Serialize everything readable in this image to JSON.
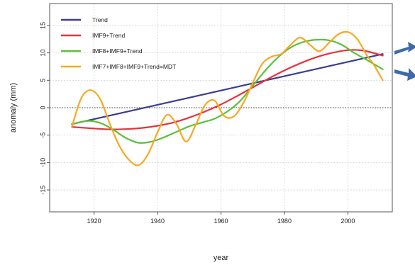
{
  "chart_data": {
    "type": "line",
    "title": "",
    "xlabel": "year",
    "ylabel": "anomaly (mm)",
    "xlim": [
      1906,
      2014
    ],
    "ylim": [
      -19,
      19
    ],
    "x_ticks": [
      1920,
      1940,
      1960,
      1980,
      2000
    ],
    "y_ticks": [
      -15,
      -10,
      -5,
      0,
      5,
      10,
      15
    ],
    "grid": true,
    "zero_line": true,
    "legend_position": "top-left",
    "series": [
      {
        "name": "Trend",
        "color": "#3b3f8f",
        "x": [
          1913,
          2011
        ],
        "y": [
          -3.0,
          9.8
        ]
      },
      {
        "name": "IMF9+Trend",
        "color": "#e8323c",
        "x": [
          1913,
          1920,
          1925,
          1930,
          1935,
          1940,
          1945,
          1950,
          1955,
          1960,
          1965,
          1970,
          1975,
          1980,
          1985,
          1990,
          1995,
          2000,
          2005,
          2011
        ],
        "y": [
          -3.5,
          -3.8,
          -3.95,
          -3.9,
          -3.7,
          -3.3,
          -2.7,
          -1.8,
          -0.7,
          0.6,
          2.1,
          3.7,
          5.3,
          6.8,
          8.1,
          9.2,
          10.0,
          10.5,
          10.4,
          9.5
        ]
      },
      {
        "name": "IMF8+IMF9+Trend",
        "color": "#5cbf3c",
        "x": [
          1913,
          1918,
          1922,
          1926,
          1930,
          1934,
          1938,
          1942,
          1946,
          1950,
          1954,
          1958,
          1962,
          1966,
          1970,
          1974,
          1978,
          1982,
          1986,
          1990,
          1994,
          1998,
          2002,
          2006,
          2011
        ],
        "y": [
          -3.0,
          -2.4,
          -2.8,
          -4.0,
          -5.5,
          -6.4,
          -6.2,
          -5.4,
          -4.4,
          -3.4,
          -2.7,
          -2.0,
          -0.7,
          1.2,
          4.0,
          6.8,
          9.2,
          11.0,
          12.0,
          12.4,
          12.3,
          11.5,
          10.0,
          8.7,
          7.0
        ]
      },
      {
        "name": "IMF7+IMF8+IMF9+Trend=MDT",
        "color": "#f7a823",
        "x": [
          1913,
          1916,
          1919,
          1922,
          1925,
          1928,
          1931,
          1934,
          1937,
          1940,
          1943,
          1946,
          1949,
          1952,
          1955,
          1958,
          1961,
          1964,
          1967,
          1970,
          1973,
          1976,
          1979,
          1982,
          1985,
          1988,
          1991,
          1994,
          1997,
          2000,
          2003,
          2006,
          2008,
          2011
        ],
        "y": [
          -3.5,
          1.8,
          3.2,
          1.5,
          -3.0,
          -7.0,
          -9.5,
          -10.5,
          -8.5,
          -4.5,
          -1.3,
          -3.0,
          -6.2,
          -3.2,
          0.5,
          1.3,
          -1.5,
          -1.6,
          0.8,
          4.5,
          8.0,
          9.3,
          9.8,
          11.5,
          12.8,
          11.5,
          10.3,
          11.8,
          13.4,
          13.8,
          12.5,
          9.5,
          8.0,
          5.0
        ]
      }
    ]
  }
}
